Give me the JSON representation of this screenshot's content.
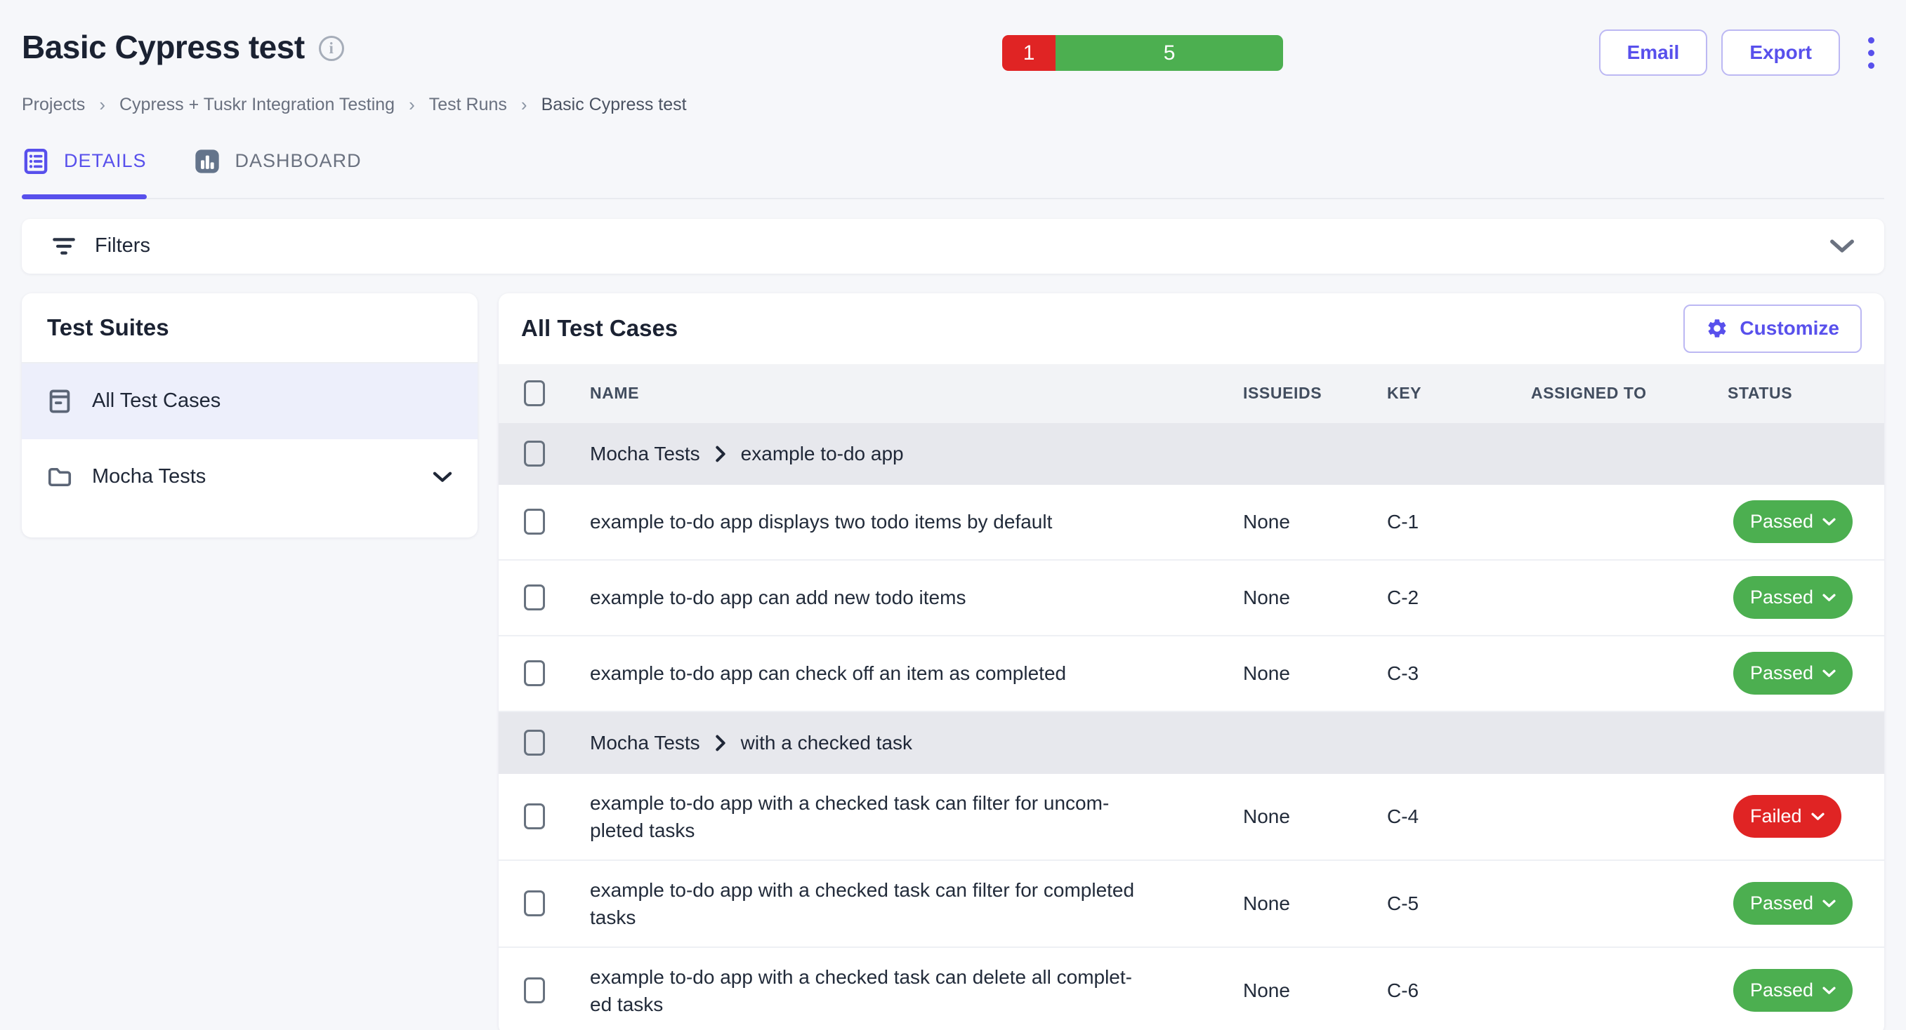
{
  "header": {
    "title": "Basic Cypress test",
    "breadcrumbs": [
      "Projects",
      "Cypress + Tuskr Integration Testing",
      "Test Runs",
      "Basic Cypress test"
    ],
    "breadcrumb_separator": "›",
    "progress": {
      "segments": [
        {
          "label": "1",
          "count": 1,
          "color": "#e02424"
        },
        {
          "label": "5",
          "count": 5,
          "color": "#4caf50"
        }
      ]
    },
    "actions": {
      "email_label": "Email",
      "export_label": "Export"
    }
  },
  "tabs": [
    {
      "label": "DETAILS",
      "active": true
    },
    {
      "label": "DASHBOARD",
      "active": false
    }
  ],
  "filters": {
    "label": "Filters"
  },
  "sidebar": {
    "title": "Test Suites",
    "items": [
      {
        "label": "All Test Cases",
        "icon": "archive-icon",
        "selected": true
      },
      {
        "label": "Mocha Tests",
        "icon": "folder-icon",
        "selected": false,
        "expandable": true
      }
    ]
  },
  "main": {
    "title": "All Test Cases",
    "customize_label": "Customize",
    "status_colors": {
      "Passed": "#4caf50",
      "Failed": "#e02424"
    },
    "table": {
      "columns": [
        "NAME",
        "ISSUEIDS",
        "KEY",
        "ASSIGNED TO",
        "STATUS"
      ],
      "rows": [
        {
          "type": "group",
          "suite": "Mocha Tests",
          "section": "example to-do app"
        },
        {
          "type": "case",
          "name": "example to-do app displays two todo items by default",
          "issueids": "None",
          "key": "C-1",
          "assigned_to": "",
          "status": "Passed"
        },
        {
          "type": "case",
          "name": "example to-do app can add new todo items",
          "issueids": "None",
          "key": "C-2",
          "assigned_to": "",
          "status": "Passed"
        },
        {
          "type": "case",
          "name": "example to-do app can check off an item as completed",
          "issueids": "None",
          "key": "C-3",
          "assigned_to": "",
          "status": "Passed"
        },
        {
          "type": "group",
          "suite": "Mocha Tests",
          "section": "with a checked task"
        },
        {
          "type": "case",
          "name": "example to-do app with a checked task can filter for uncom­pleted tasks",
          "issueids": "None",
          "key": "C-4",
          "assigned_to": "",
          "status": "Failed"
        },
        {
          "type": "case",
          "name": "example to-do app with a checked task can filter for completed tasks",
          "issueids": "None",
          "key": "C-5",
          "assigned_to": "",
          "status": "Passed"
        },
        {
          "type": "case",
          "name": "example to-do app with a checked task can delete all complet­ed tasks",
          "issueids": "None",
          "key": "C-6",
          "assigned_to": "",
          "status": "Passed"
        }
      ]
    }
  }
}
